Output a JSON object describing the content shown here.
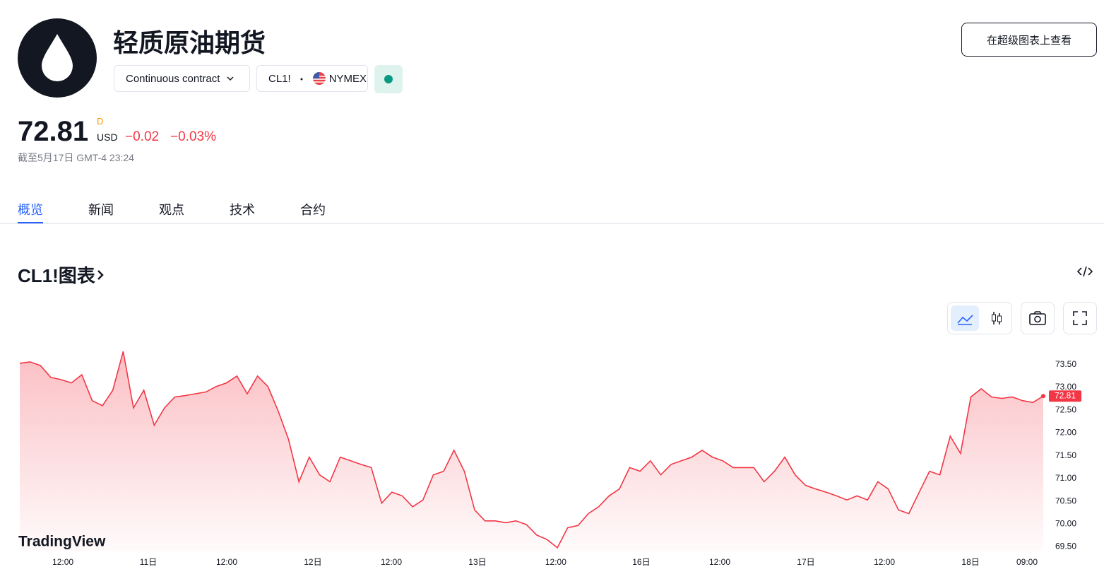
{
  "header": {
    "title": "轻质原油期货",
    "contract_button": "Continuous contract",
    "symbol": "CL1!",
    "exchange": "NYMEX",
    "supercharts_button": "在超级图表上查看"
  },
  "quote": {
    "price": "72.81",
    "interval": "D",
    "currency": "USD",
    "change": "−0.02",
    "change_percent": "−0.03%",
    "timestamp": "截至5月17日 GMT-4 23:24"
  },
  "tabs": [
    "概览",
    "新闻",
    "观点",
    "技术",
    "合约"
  ],
  "chart_section": {
    "title": "CL1!图表",
    "watermark": "TradingView"
  },
  "chart_data": {
    "type": "line",
    "color": "#f23645",
    "values": [
      73.53,
      73.56,
      73.48,
      73.22,
      73.17,
      73.1,
      73.28,
      72.71,
      72.6,
      72.94,
      73.79,
      72.55,
      72.94,
      72.17,
      72.55,
      72.79,
      72.82,
      72.86,
      72.9,
      73.02,
      73.1,
      73.25,
      72.86,
      73.25,
      73.02,
      72.48,
      71.86,
      70.93,
      71.47,
      71.08,
      70.93,
      71.47,
      71.39,
      71.31,
      71.24,
      70.46,
      70.7,
      70.62,
      70.38,
      70.53,
      71.08,
      71.16,
      71.62,
      71.16,
      70.31,
      70.07,
      70.07,
      70.03,
      70.07,
      69.99,
      69.76,
      69.66,
      69.48,
      69.92,
      69.97,
      70.23,
      70.38,
      70.62,
      70.77,
      71.24,
      71.16,
      71.39,
      71.08,
      71.31,
      71.39,
      71.47,
      71.62,
      71.47,
      71.39,
      71.24,
      71.24,
      71.24,
      70.93,
      71.16,
      71.47,
      71.08,
      70.85,
      70.77,
      70.7,
      70.62,
      70.53,
      70.62,
      70.53,
      70.93,
      70.77,
      70.31,
      70.23,
      70.7,
      71.16,
      71.08,
      71.93,
      71.55,
      72.79,
      72.97,
      72.79,
      72.76,
      72.79,
      72.71,
      72.67,
      72.81
    ],
    "xlim": [
      0,
      99
    ],
    "xticks": [
      {
        "value": 4.17,
        "label": "12:00"
      },
      {
        "value": 12.43,
        "label": "11日"
      },
      {
        "value": 20.02,
        "label": "12:00"
      },
      {
        "value": 28.35,
        "label": "12日"
      },
      {
        "value": 35.94,
        "label": "12:00"
      },
      {
        "value": 44.27,
        "label": "13日"
      },
      {
        "value": 51.85,
        "label": "12:00"
      },
      {
        "value": 60.12,
        "label": "16日"
      },
      {
        "value": 67.71,
        "label": "12:00"
      },
      {
        "value": 76.04,
        "label": "17日"
      },
      {
        "value": 83.63,
        "label": "12:00"
      },
      {
        "value": 91.97,
        "label": "18日"
      },
      {
        "value": 97.43,
        "label": "09:00"
      }
    ],
    "ylim": [
      69.4,
      73.9
    ],
    "yticks": [
      {
        "value": 69.5,
        "label": "69.50"
      },
      {
        "value": 70,
        "label": "70.00"
      },
      {
        "value": 70.5,
        "label": "70.50"
      },
      {
        "value": 71,
        "label": "71.00"
      },
      {
        "value": 71.5,
        "label": "71.50"
      },
      {
        "value": 72,
        "label": "72.00"
      },
      {
        "value": 72.5,
        "label": "72.50"
      },
      {
        "value": 73,
        "label": "73.00"
      },
      {
        "value": 73.5,
        "label": "73.50"
      }
    ]
  }
}
